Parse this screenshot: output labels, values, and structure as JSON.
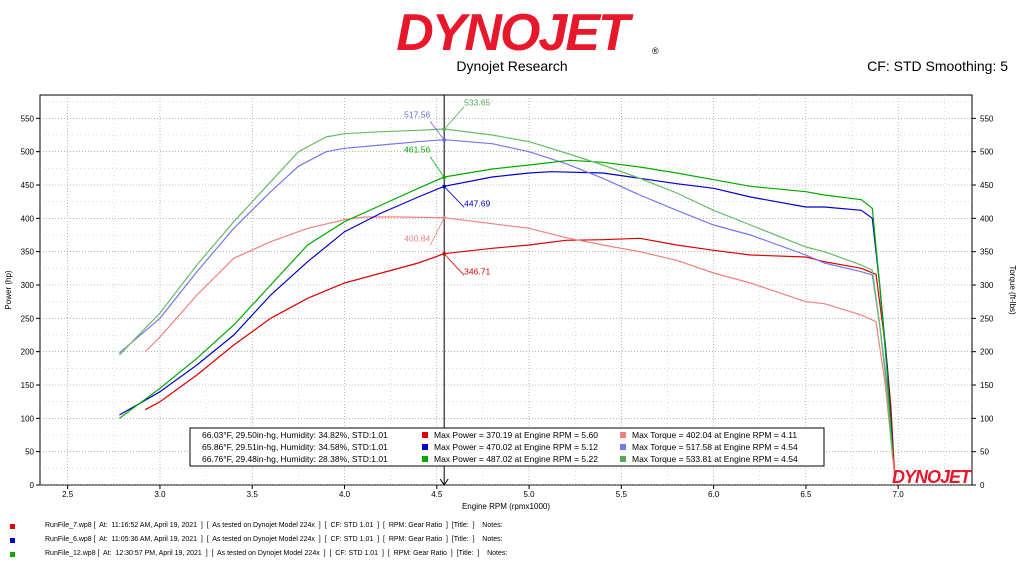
{
  "header": {
    "logo_text": "DYNOJET",
    "subtitle": "Dynojet Research",
    "cf_smoothing": "CF: STD Smoothing: 5"
  },
  "chart_data": {
    "type": "line",
    "xlabel": "Engine RPM (rpmx1000)",
    "ylabel_left": "Power (hp)",
    "ylabel_right": "Torque (ft-lbs)",
    "xlim": [
      2.35,
      7.4
    ],
    "ylim": [
      0,
      585
    ],
    "x_ticks": [
      "2.5",
      "3.0",
      "3.5",
      "4.0",
      "4.5",
      "5.0",
      "5.5",
      "6.0",
      "6.5",
      "7.0"
    ],
    "y_ticks": [
      "0",
      "50",
      "100",
      "150",
      "200",
      "250",
      "300",
      "350",
      "400",
      "450",
      "500",
      "550"
    ],
    "cursor_x": 4.54,
    "series": [
      {
        "name": "RunFile_7 Power",
        "color": "#dd0000",
        "kind": "power",
        "points": [
          [
            2.92,
            113
          ],
          [
            3.0,
            125
          ],
          [
            3.2,
            165
          ],
          [
            3.4,
            210
          ],
          [
            3.6,
            250
          ],
          [
            3.8,
            280
          ],
          [
            4.0,
            303
          ],
          [
            4.2,
            318
          ],
          [
            4.4,
            333
          ],
          [
            4.54,
            347
          ],
          [
            4.8,
            355
          ],
          [
            5.0,
            360
          ],
          [
            5.2,
            367
          ],
          [
            5.4,
            368
          ],
          [
            5.6,
            370
          ],
          [
            5.8,
            360
          ],
          [
            6.0,
            352
          ],
          [
            6.2,
            345
          ],
          [
            6.5,
            342
          ],
          [
            6.6,
            335
          ],
          [
            6.8,
            325
          ],
          [
            6.88,
            316
          ],
          [
            6.93,
            210
          ],
          [
            6.96,
            120
          ],
          [
            6.98,
            20
          ]
        ]
      },
      {
        "name": "RunFile_7 Torque",
        "color": "#f08080",
        "kind": "torque",
        "points": [
          [
            2.92,
            200
          ],
          [
            3.0,
            222
          ],
          [
            3.2,
            285
          ],
          [
            3.4,
            340
          ],
          [
            3.6,
            365
          ],
          [
            3.8,
            385
          ],
          [
            4.0,
            398
          ],
          [
            4.11,
            402
          ],
          [
            4.3,
            402
          ],
          [
            4.54,
            401
          ],
          [
            4.8,
            392
          ],
          [
            5.0,
            385
          ],
          [
            5.2,
            371
          ],
          [
            5.4,
            360
          ],
          [
            5.6,
            350
          ],
          [
            5.8,
            337
          ],
          [
            6.0,
            318
          ],
          [
            6.2,
            303
          ],
          [
            6.5,
            275
          ],
          [
            6.6,
            272
          ],
          [
            6.8,
            255
          ],
          [
            6.88,
            245
          ],
          [
            6.93,
            150
          ],
          [
            6.96,
            70
          ],
          [
            6.98,
            15
          ]
        ]
      },
      {
        "name": "RunFile_6 Power",
        "color": "#0000cc",
        "kind": "power",
        "points": [
          [
            2.78,
            105
          ],
          [
            3.0,
            140
          ],
          [
            3.2,
            180
          ],
          [
            3.4,
            225
          ],
          [
            3.6,
            285
          ],
          [
            3.8,
            335
          ],
          [
            4.0,
            380
          ],
          [
            4.2,
            408
          ],
          [
            4.4,
            432
          ],
          [
            4.54,
            448
          ],
          [
            4.8,
            462
          ],
          [
            5.0,
            468
          ],
          [
            5.12,
            470
          ],
          [
            5.4,
            468
          ],
          [
            5.6,
            460
          ],
          [
            5.8,
            452
          ],
          [
            6.0,
            445
          ],
          [
            6.2,
            432
          ],
          [
            6.5,
            417
          ],
          [
            6.6,
            417
          ],
          [
            6.8,
            412
          ],
          [
            6.86,
            400
          ],
          [
            6.9,
            300
          ],
          [
            6.94,
            180
          ],
          [
            6.97,
            60
          ]
        ]
      },
      {
        "name": "RunFile_6 Torque",
        "color": "#7777ee",
        "kind": "torque",
        "points": [
          [
            2.78,
            198
          ],
          [
            3.0,
            250
          ],
          [
            3.2,
            320
          ],
          [
            3.4,
            385
          ],
          [
            3.6,
            440
          ],
          [
            3.75,
            478
          ],
          [
            3.9,
            500
          ],
          [
            4.0,
            505
          ],
          [
            4.2,
            510
          ],
          [
            4.4,
            515
          ],
          [
            4.54,
            518
          ],
          [
            4.8,
            512
          ],
          [
            5.0,
            500
          ],
          [
            5.2,
            482
          ],
          [
            5.4,
            460
          ],
          [
            5.6,
            435
          ],
          [
            5.8,
            412
          ],
          [
            6.0,
            390
          ],
          [
            6.2,
            375
          ],
          [
            6.5,
            345
          ],
          [
            6.6,
            333
          ],
          [
            6.8,
            320
          ],
          [
            6.86,
            315
          ],
          [
            6.9,
            240
          ],
          [
            6.94,
            150
          ],
          [
            6.97,
            50
          ]
        ]
      },
      {
        "name": "RunFile_12 Power",
        "color": "#00aa00",
        "kind": "power",
        "points": [
          [
            2.78,
            100
          ],
          [
            3.0,
            145
          ],
          [
            3.2,
            190
          ],
          [
            3.4,
            240
          ],
          [
            3.6,
            300
          ],
          [
            3.8,
            360
          ],
          [
            4.0,
            395
          ],
          [
            4.2,
            420
          ],
          [
            4.4,
            445
          ],
          [
            4.54,
            462
          ],
          [
            4.8,
            474
          ],
          [
            5.0,
            480
          ],
          [
            5.22,
            487
          ],
          [
            5.4,
            484
          ],
          [
            5.6,
            477
          ],
          [
            5.8,
            468
          ],
          [
            6.0,
            458
          ],
          [
            6.2,
            448
          ],
          [
            6.5,
            440
          ],
          [
            6.6,
            435
          ],
          [
            6.8,
            428
          ],
          [
            6.86,
            415
          ],
          [
            6.9,
            300
          ],
          [
            6.94,
            170
          ],
          [
            6.97,
            50
          ]
        ]
      },
      {
        "name": "RunFile_12 Torque",
        "color": "#66bb66",
        "kind": "torque",
        "points": [
          [
            2.78,
            195
          ],
          [
            3.0,
            258
          ],
          [
            3.2,
            330
          ],
          [
            3.4,
            395
          ],
          [
            3.6,
            455
          ],
          [
            3.75,
            500
          ],
          [
            3.9,
            522
          ],
          [
            4.0,
            527
          ],
          [
            4.2,
            530
          ],
          [
            4.4,
            532
          ],
          [
            4.54,
            534
          ],
          [
            4.8,
            525
          ],
          [
            5.0,
            515
          ],
          [
            5.2,
            498
          ],
          [
            5.4,
            480
          ],
          [
            5.6,
            460
          ],
          [
            5.8,
            438
          ],
          [
            6.0,
            412
          ],
          [
            6.2,
            390
          ],
          [
            6.5,
            357
          ],
          [
            6.6,
            350
          ],
          [
            6.8,
            330
          ],
          [
            6.86,
            322
          ],
          [
            6.9,
            240
          ],
          [
            6.94,
            140
          ],
          [
            6.97,
            40
          ]
        ]
      }
    ],
    "cursor_labels": [
      {
        "text": "533.65",
        "color": "#55aa55",
        "y": 533.65,
        "side": "right",
        "ly": 563
      },
      {
        "text": "517.56",
        "color": "#6666dd",
        "y": 517.56,
        "side": "left",
        "ly": 550
      },
      {
        "text": "461.56",
        "color": "#00aa00",
        "y": 461.56,
        "side": "left",
        "ly": 497
      },
      {
        "text": "447.69",
        "color": "#0000cc",
        "y": 447.69,
        "side": "right",
        "ly": 412
      },
      {
        "text": "400.84",
        "color": "#f08080",
        "y": 400.84,
        "side": "left",
        "ly": 364
      },
      {
        "text": "346.71",
        "color": "#dd0000",
        "y": 346.71,
        "side": "right",
        "ly": 310
      }
    ],
    "legend": {
      "rows": [
        {
          "cond": "66.03°F, 29.50in-hg, Humidity: 34.82%, STD:1.01",
          "power_color": "#dd0000",
          "power": "Max Power = 370.19 at Engine RPM = 5.60",
          "torque_color": "#f08080",
          "torque": "Max Torque = 402.04 at Engine RPM = 4.11"
        },
        {
          "cond": "65.86°F, 29.51in-hg, Humidity: 34.58%, STD:1.01",
          "power_color": "#0000cc",
          "power": "Max Power = 470.02 at Engine RPM = 5.12",
          "torque_color": "#7777ee",
          "torque": "Max Torque = 517.58 at Engine RPM = 4.54"
        },
        {
          "cond": "66.76°F, 29.48in-hg, Humidity: 28.38%, STD:1.01",
          "power_color": "#00aa00",
          "power": "Max Power = 487.02 at Engine RPM = 5.22",
          "torque_color": "#55aa55",
          "torque": "Max Torque = 533.81 at Engine RPM = 4.54"
        }
      ]
    }
  },
  "run_files": [
    {
      "color": "#dd0000",
      "text": "RunFile_7.wp8 [  At:  11:16:52 AM, April 19, 2021  ]  [  As tested on Dynojet Model 224x  ]  [  CF: STD 1.01  ]  [  RPM: Gear Ratio  ]  [Title:  ]    Notes:"
    },
    {
      "color": "#0000cc",
      "text": "RunFile_6.wp8 [  At:  11:05:36 AM, April 19, 2021  ]  [  As tested on Dynojet Model 224x  ]  [  CF: STD 1.01  ]  [  RPM: Gear Ratio  ]  [Title:  ]    Notes:"
    },
    {
      "color": "#00aa00",
      "text": "RunFile_12.wp8 [  At:  12:30:57 PM, April 19, 2021  ]  [  As tested on Dynojet Model 224x  ]  [  CF: STD 1.01  ]  [  RPM: Gear Ratio  ]  [Title:  ]    Notes:"
    }
  ]
}
